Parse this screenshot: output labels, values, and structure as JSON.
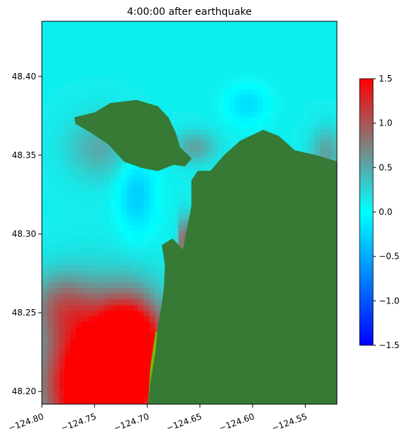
{
  "chart_data": {
    "type": "heatmap",
    "title": "4:00:00 after earthquake",
    "xlabel": "",
    "ylabel": "",
    "xlim": [
      -124.8,
      -124.52
    ],
    "ylim": [
      48.192,
      48.435
    ],
    "x_ticks": [
      -124.8,
      -124.75,
      -124.7,
      -124.65,
      -124.6,
      -124.55
    ],
    "x_tick_labels": [
      "−124.80",
      "−124.75",
      "−124.70",
      "−124.65",
      "−124.60",
      "−124.55"
    ],
    "y_ticks": [
      48.2,
      48.25,
      48.3,
      48.35,
      48.4
    ],
    "y_tick_labels": [
      "48.20",
      "48.25",
      "48.30",
      "48.35",
      "48.40"
    ],
    "colorbar": {
      "range": [
        -1.5,
        1.5
      ],
      "ticks": [
        -1.5,
        -1.0,
        -0.5,
        0.0,
        0.5,
        1.0,
        1.5
      ],
      "tick_labels": [
        "−1.5",
        "−1.0",
        "−0.5",
        "0.0",
        "0.5",
        "1.0",
        "1.5"
      ],
      "colors": [
        "#0000ff",
        "#00ffff",
        "#808080",
        "#ff0000"
      ]
    },
    "land_color": "#367a36",
    "shallow_color": "#7ab800",
    "water_base_value": 0.1,
    "anomalies": [
      {
        "lon": -124.745,
        "lat": 48.205,
        "value": 2.2,
        "spread_lon": 0.05,
        "spread_lat": 0.045
      },
      {
        "lon": -124.715,
        "lat": 48.228,
        "value": 1.6,
        "spread_lon": 0.03,
        "spread_lat": 0.03
      },
      {
        "lon": -124.782,
        "lat": 48.255,
        "value": 0.6,
        "spread_lon": 0.03,
        "spread_lat": 0.02
      },
      {
        "lon": -124.745,
        "lat": 48.355,
        "value": 0.4,
        "spread_lon": 0.03,
        "spread_lat": 0.02
      },
      {
        "lon": -124.71,
        "lat": 48.325,
        "value": -0.4,
        "spread_lon": 0.018,
        "spread_lat": 0.025
      },
      {
        "lon": -124.605,
        "lat": 48.382,
        "value": -0.3,
        "spread_lon": 0.02,
        "spread_lat": 0.012
      },
      {
        "lon": -124.53,
        "lat": 48.352,
        "value": 0.45,
        "spread_lon": 0.015,
        "spread_lat": 0.015
      },
      {
        "lon": -124.655,
        "lat": 48.355,
        "value": 0.45,
        "spread_lon": 0.02,
        "spread_lat": 0.01
      },
      {
        "lon": -124.665,
        "lat": 48.295,
        "value": 1.0,
        "spread_lon": 0.005,
        "spread_lat": 0.015
      }
    ],
    "land_polygons": [
      [
        [
          -124.699,
          48.192
        ],
        [
          -124.697,
          48.205
        ],
        [
          -124.692,
          48.225
        ],
        [
          -124.69,
          48.24
        ],
        [
          -124.686,
          48.256
        ],
        [
          -124.684,
          48.266
        ],
        [
          -124.683,
          48.28
        ],
        [
          -124.686,
          48.293
        ],
        [
          -124.676,
          48.297
        ],
        [
          -124.666,
          48.29
        ],
        [
          -124.663,
          48.3
        ],
        [
          -124.658,
          48.318
        ],
        [
          -124.658,
          48.334
        ],
        [
          -124.652,
          48.34
        ],
        [
          -124.64,
          48.34
        ],
        [
          -124.627,
          48.35
        ],
        [
          -124.612,
          48.359
        ],
        [
          -124.59,
          48.366
        ],
        [
          -124.575,
          48.362
        ],
        [
          -124.56,
          48.353
        ],
        [
          -124.54,
          48.35
        ],
        [
          -124.52,
          48.346
        ],
        [
          -124.52,
          48.192
        ]
      ],
      [
        [
          -124.769,
          48.374
        ],
        [
          -124.75,
          48.377
        ],
        [
          -124.735,
          48.383
        ],
        [
          -124.71,
          48.385
        ],
        [
          -124.69,
          48.381
        ],
        [
          -124.68,
          48.374
        ],
        [
          -124.673,
          48.364
        ],
        [
          -124.669,
          48.355
        ],
        [
          -124.658,
          48.348
        ],
        [
          -124.664,
          48.343
        ],
        [
          -124.675,
          48.344
        ],
        [
          -124.69,
          48.34
        ],
        [
          -124.705,
          48.342
        ],
        [
          -124.722,
          48.346
        ],
        [
          -124.737,
          48.357
        ],
        [
          -124.755,
          48.365
        ],
        [
          -124.768,
          48.37
        ]
      ]
    ],
    "shallow_polygons": [
      [
        [
          -124.672,
          48.27
        ],
        [
          -124.66,
          48.268
        ],
        [
          -124.65,
          48.258
        ],
        [
          -124.64,
          48.245
        ],
        [
          -124.632,
          48.252
        ],
        [
          -124.638,
          48.266
        ],
        [
          -124.648,
          48.278
        ],
        [
          -124.66,
          48.282
        ]
      ],
      [
        [
          -124.699,
          48.192
        ],
        [
          -124.697,
          48.215
        ],
        [
          -124.692,
          48.238
        ],
        [
          -124.689,
          48.238
        ],
        [
          -124.693,
          48.215
        ],
        [
          -124.696,
          48.192
        ]
      ]
    ]
  }
}
